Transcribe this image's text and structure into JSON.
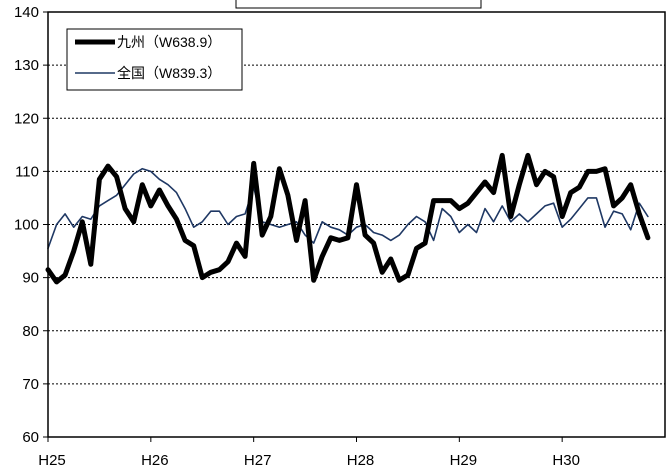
{
  "chart_data": {
    "type": "line",
    "ylim": [
      60,
      140
    ],
    "yticks": [
      60,
      70,
      80,
      90,
      100,
      110,
      120,
      130,
      140
    ],
    "ytick_labels": [
      "60",
      "70",
      "80",
      "90",
      "100",
      "110",
      "120",
      "130",
      "140"
    ],
    "xlim": [
      0,
      72
    ],
    "xticks": [
      {
        "x": 0,
        "label": "H25"
      },
      {
        "x": 12,
        "label": "H26"
      },
      {
        "x": 24,
        "label": "H27"
      },
      {
        "x": 36,
        "label": "H28"
      },
      {
        "x": 48,
        "label": "H29"
      },
      {
        "x": 60,
        "label": "H30"
      }
    ],
    "grid": "horizontal-dotted",
    "legend_position": "top-left",
    "series": [
      {
        "name": "九州（W638.9）",
        "color": "#000000",
        "style": "thick",
        "values": [
          91.5,
          89.2,
          90.5,
          95,
          100.5,
          92.5,
          108.5,
          111,
          109,
          103,
          100.5,
          107.5,
          103.5,
          106.5,
          103.5,
          101,
          97,
          96,
          90,
          91,
          91.5,
          93,
          96.5,
          94,
          111.5,
          98,
          101.5,
          110.5,
          105.5,
          97,
          104.5,
          89.5,
          94,
          97.5,
          97,
          97.5,
          107.5,
          98,
          96.5,
          91,
          93.5,
          89.5,
          90.5,
          95.5,
          96.5,
          104.5,
          104.5,
          104.5,
          103,
          104,
          106,
          108,
          106,
          113,
          101.5,
          107.5,
          113,
          107.5,
          110,
          109,
          101.5,
          106,
          107,
          110,
          110,
          110.5,
          103.5,
          105,
          107.5,
          102,
          97.5
        ]
      },
      {
        "name": "全国（W839.3）",
        "color": "#1f3864",
        "style": "thin",
        "values": [
          95.5,
          100,
          102,
          99.5,
          101.5,
          101,
          103.5,
          104.5,
          105.5,
          107.5,
          109.5,
          110.5,
          110,
          108.5,
          107.5,
          106,
          103,
          99.5,
          100.5,
          102.5,
          102.5,
          100,
          101.5,
          102,
          107,
          100.5,
          100,
          99.5,
          100,
          100.5,
          98,
          96.5,
          100.5,
          99.5,
          99,
          98,
          99.5,
          100,
          98.5,
          98,
          97,
          98,
          100,
          101.5,
          100.5,
          97,
          103,
          101.5,
          98.5,
          100,
          98.5,
          103,
          100.5,
          103.5,
          100.5,
          102,
          100.5,
          102,
          103.5,
          104,
          99.5,
          101,
          103,
          105,
          105,
          99.5,
          102.5,
          102,
          99,
          104,
          101.5
        ]
      }
    ]
  }
}
